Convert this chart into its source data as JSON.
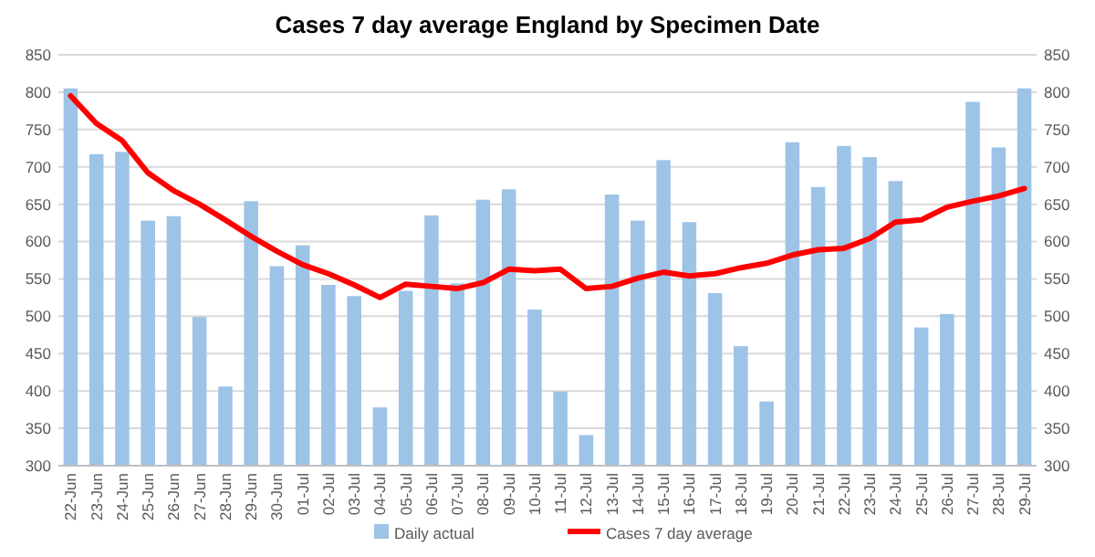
{
  "chart_data": {
    "type": "bar",
    "title": "Cases 7 day average England by Specimen Date",
    "categories": [
      "22-Jun",
      "23-Jun",
      "24-Jun",
      "25-Jun",
      "26-Jun",
      "27-Jun",
      "28-Jun",
      "29-Jun",
      "30-Jun",
      "01-Jul",
      "02-Jul",
      "03-Jul",
      "04-Jul",
      "05-Jul",
      "06-Jul",
      "07-Jul",
      "08-Jul",
      "09-Jul",
      "10-Jul",
      "11-Jul",
      "12-Jul",
      "13-Jul",
      "14-Jul",
      "15-Jul",
      "16-Jul",
      "17-Jul",
      "18-Jul",
      "19-Jul",
      "20-Jul",
      "21-Jul",
      "22-Jul",
      "23-Jul",
      "24-Jul",
      "25-Jul",
      "26-Jul",
      "27-Jul",
      "28-Jul",
      "29-Jul"
    ],
    "series": [
      {
        "name": "Daily actual",
        "color": "#9dc3e6",
        "values": [
          805,
          717,
          720,
          628,
          634,
          499,
          406,
          654,
          567,
          595,
          542,
          527,
          378,
          534,
          635,
          544,
          656,
          670,
          509,
          399,
          341,
          663,
          628,
          709,
          626,
          531,
          460,
          386,
          733,
          673,
          728,
          713,
          681,
          485,
          503,
          787,
          726,
          805
        ]
      },
      {
        "name": "Cases 7 day average",
        "type": "line",
        "color": "#ff0000",
        "values": [
          795,
          758,
          735,
          692,
          668,
          650,
          629,
          607,
          587,
          569,
          557,
          542,
          525,
          543,
          540,
          537,
          545,
          563,
          561,
          563,
          537,
          540,
          551,
          559,
          554,
          557,
          565,
          571,
          582,
          589,
          591,
          604,
          626,
          629,
          646,
          654,
          661,
          671
        ]
      }
    ],
    "ylim": [
      300,
      850
    ],
    "yticks": [
      300,
      350,
      400,
      450,
      500,
      550,
      600,
      650,
      700,
      750,
      800,
      850
    ],
    "y2lim": [
      300,
      850
    ],
    "y2ticks": [
      300,
      350,
      400,
      450,
      500,
      550,
      600,
      650,
      700,
      750,
      800,
      850
    ],
    "grid": "y",
    "legend": "bottom",
    "marker": "none",
    "line_style": "solid"
  }
}
